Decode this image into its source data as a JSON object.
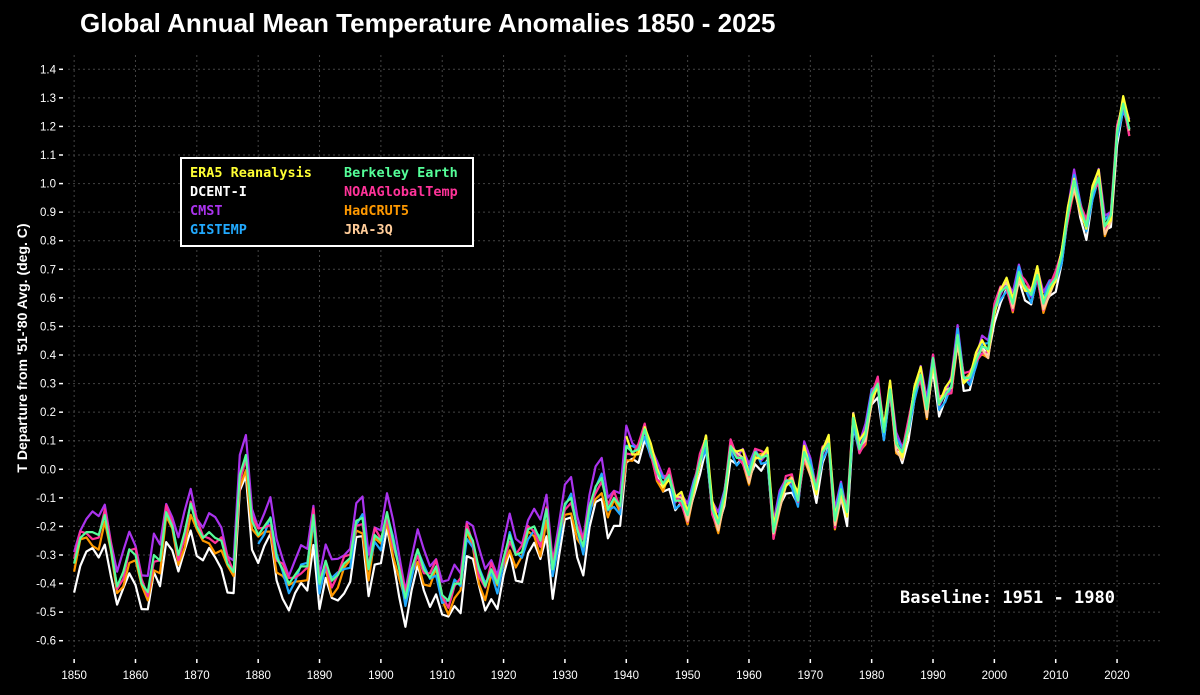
{
  "chart_data": {
    "type": "line",
    "title": "Global Annual Mean Temperature Anomalies 1850 - 2025",
    "ylabel": "T Departure from '51-'80 Avg. (deg. C)",
    "xlabel": "",
    "annotation": "Baseline: 1951 - 1980",
    "xlim": [
      1849,
      2027
    ],
    "ylim": [
      -0.65,
      1.45
    ],
    "xticks": [
      "1850",
      "1860",
      "1870",
      "1880",
      "1890",
      "1900",
      "1910",
      "1920",
      "1930",
      "1940",
      "1950",
      "1960",
      "1970",
      "1980",
      "1990",
      "2000",
      "2010",
      "2020"
    ],
    "yticks": [
      "-0.6",
      "-0.5",
      "-0.4",
      "-0.3",
      "-0.2",
      "-0.1",
      "0.0",
      "0.1",
      "0.2",
      "0.3",
      "0.4",
      "0.5",
      "0.6",
      "0.7",
      "0.8",
      "0.9",
      "1.0",
      "1.1",
      "1.2",
      "1.3",
      "1.4"
    ],
    "grid": true,
    "legend_position": "upper-left",
    "reference_start_year": 1850,
    "reference_series": [
      -0.33,
      -0.24,
      -0.22,
      -0.22,
      -0.23,
      -0.16,
      -0.28,
      -0.41,
      -0.36,
      -0.28,
      -0.3,
      -0.4,
      -0.43,
      -0.3,
      -0.32,
      -0.15,
      -0.2,
      -0.3,
      -0.22,
      -0.12,
      -0.2,
      -0.24,
      -0.22,
      -0.24,
      -0.25,
      -0.33,
      -0.36,
      -0.02,
      0.05,
      -0.18,
      -0.23,
      -0.2,
      -0.17,
      -0.31,
      -0.35,
      -0.4,
      -0.37,
      -0.34,
      -0.34,
      -0.16,
      -0.4,
      -0.32,
      -0.39,
      -0.37,
      -0.33,
      -0.31,
      -0.18,
      -0.17,
      -0.35,
      -0.23,
      -0.25,
      -0.15,
      -0.25,
      -0.35,
      -0.45,
      -0.35,
      -0.28,
      -0.35,
      -0.38,
      -0.34,
      -0.44,
      -0.46,
      -0.4,
      -0.4,
      -0.21,
      -0.25,
      -0.35,
      -0.41,
      -0.35,
      -0.4,
      -0.31,
      -0.23,
      -0.3,
      -0.29,
      -0.21,
      -0.2,
      -0.25,
      -0.14,
      -0.35,
      -0.23,
      -0.12,
      -0.1,
      -0.21,
      -0.27,
      -0.13,
      -0.06,
      -0.03,
      -0.14,
      -0.1,
      -0.13,
      0.08,
      0.06,
      0.07,
      0.14,
      0.06,
      -0.01,
      -0.05,
      -0.02,
      -0.11,
      -0.11,
      -0.16,
      -0.06,
      0.03,
      0.1,
      -0.14,
      -0.19,
      -0.09,
      0.08,
      0.04,
      0.04,
      -0.02,
      0.06,
      0.04,
      0.05,
      -0.22,
      -0.11,
      -0.04,
      -0.04,
      -0.11,
      0.06,
      0.01,
      -0.07,
      0.06,
      0.09,
      -0.18,
      -0.07,
      -0.15,
      0.18,
      0.07,
      0.12,
      0.26,
      0.3,
      0.13,
      0.28,
      0.09,
      0.06,
      0.15,
      0.27,
      0.33,
      0.21,
      0.39,
      0.23,
      0.26,
      0.29,
      0.47,
      0.32,
      0.32,
      0.38,
      0.43,
      0.42,
      0.56,
      0.62,
      0.64,
      0.58,
      0.69,
      0.64,
      0.61,
      0.68,
      0.58,
      0.64,
      0.67,
      0.75,
      0.89,
      1.01,
      0.92,
      0.85,
      0.97,
      1.02,
      0.85,
      0.89,
      1.18,
      1.28,
      1.19
    ],
    "series": [
      {
        "name": "ERA5 Reanalysis",
        "color": "#ffff33",
        "start_year": 1940,
        "offset": 0.02
      },
      {
        "name": "Berkeley Earth",
        "color": "#55ff99",
        "start_year": 1850,
        "offset": 0.0
      },
      {
        "name": "DCENT-I",
        "color": "#ffffff",
        "start_year": 1850,
        "offset": -0.08
      },
      {
        "name": "NOAAGlobalTemp",
        "color": "#ff3399",
        "start_year": 1850,
        "offset": 0.0
      },
      {
        "name": "CMST",
        "color": "#aa33ee",
        "start_year": 1850,
        "offset": 0.05
      },
      {
        "name": "HadCRUT5",
        "color": "#ff9900",
        "start_year": 1850,
        "offset": -0.03
      },
      {
        "name": "GISTEMP",
        "color": "#22aaff",
        "start_year": 1880,
        "offset": -0.01
      },
      {
        "name": "JRA-3Q",
        "color": "#ffcc99",
        "start_year": 1947,
        "offset": -0.02
      }
    ]
  }
}
